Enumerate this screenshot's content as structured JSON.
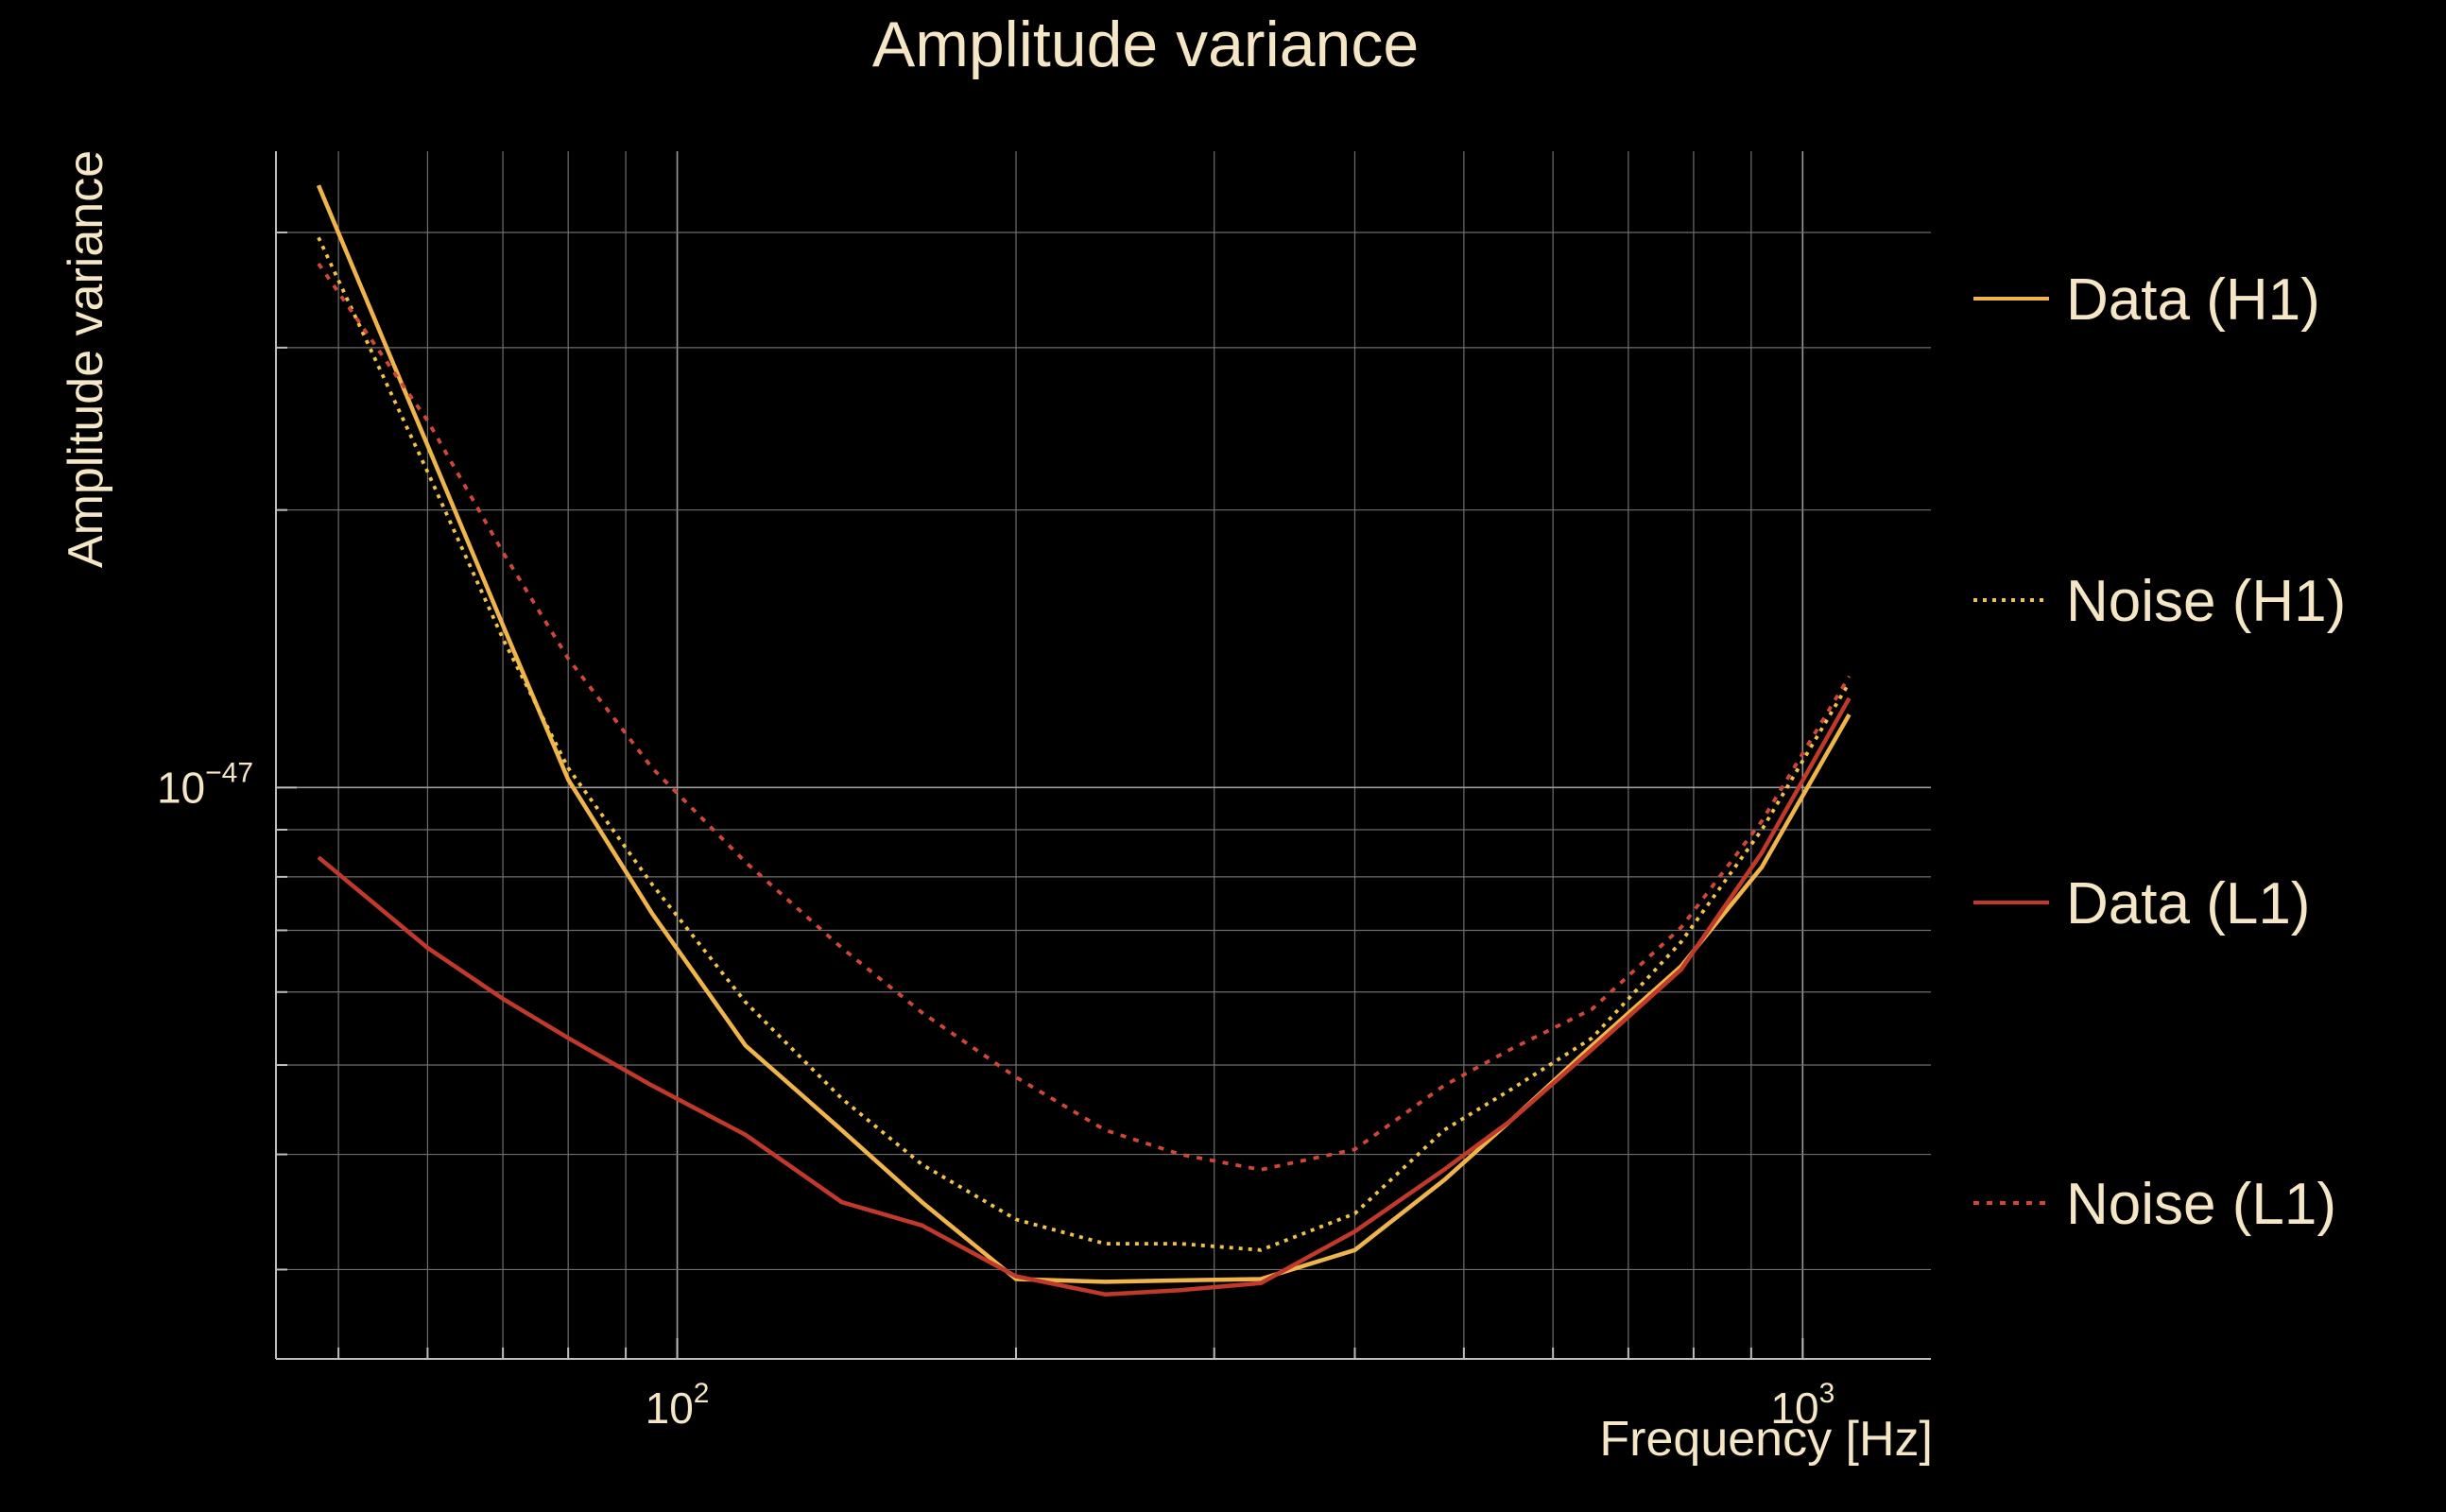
{
  "chart_data": {
    "type": "line",
    "title": "Amplitude variance",
    "xlabel": "Frequency [Hz]",
    "ylabel": "Amplitude variance",
    "xscale": "log",
    "yscale": "log",
    "xlim": [
      44,
      1300
    ],
    "ylim": [
      2.4e-48,
      4.9e-47
    ],
    "grid": true,
    "legend_position": "right",
    "x_tick_labels": [
      {
        "value": 100,
        "base": "10",
        "exp": "2"
      },
      {
        "value": 1000,
        "base": "10",
        "exp": "3"
      }
    ],
    "y_tick_labels": [
      {
        "value": 1e-47,
        "base": "10",
        "exp": "−47"
      }
    ],
    "x": [
      48,
      60,
      70,
      80,
      95,
      115,
      140,
      165,
      200,
      240,
      280,
      330,
      400,
      480,
      550,
      650,
      780,
      920,
      1100
    ],
    "series": [
      {
        "name": "Data (H1)",
        "color": "#f0b54a",
        "dash": "solid",
        "values": [
          4.5e-47,
          2.35e-47,
          1.5e-47,
          1.02e-47,
          7.3e-48,
          5.25e-48,
          4.25e-48,
          3.55e-48,
          2.93e-48,
          2.91e-48,
          2.92e-48,
          2.93e-48,
          3.15e-48,
          3.75e-48,
          4.35e-48,
          5.25e-48,
          6.4e-48,
          8.2e-48,
          1.2e-47
        ]
      },
      {
        "name": "Noise (H1)",
        "color": "#f0c24a",
        "dash": "dotted",
        "values": [
          3.95e-47,
          2.2e-47,
          1.45e-47,
          1.05e-47,
          7.85e-48,
          5.85e-48,
          4.6e-48,
          3.9e-48,
          3.4e-48,
          3.2e-48,
          3.2e-48,
          3.15e-48,
          3.45e-48,
          4.25e-48,
          4.7e-48,
          5.35e-48,
          6.8e-48,
          9e-48,
          1.3e-47
        ]
      },
      {
        "name": "Data (L1)",
        "color": "#c0392b",
        "dash": "solid",
        "values": [
          8.4e-48,
          6.7e-48,
          5.9e-48,
          5.35e-48,
          4.75e-48,
          4.2e-48,
          3.55e-48,
          3.35e-48,
          2.95e-48,
          2.82e-48,
          2.85e-48,
          2.9e-48,
          3.3e-48,
          3.85e-48,
          4.35e-48,
          5.2e-48,
          6.35e-48,
          8.5e-48,
          1.25e-47
        ]
      },
      {
        "name": "Noise (L1)",
        "color": "#d0463a",
        "dash": "dashed",
        "values": [
          3.7e-47,
          2.5e-47,
          1.8e-47,
          1.38e-47,
          1.05e-47,
          8.3e-48,
          6.7e-48,
          5.7e-48,
          4.85e-48,
          4.25e-48,
          4e-48,
          3.85e-48,
          4.05e-48,
          4.75e-48,
          5.2e-48,
          5.75e-48,
          7.05e-48,
          9.2e-48,
          1.32e-47
        ]
      }
    ]
  }
}
